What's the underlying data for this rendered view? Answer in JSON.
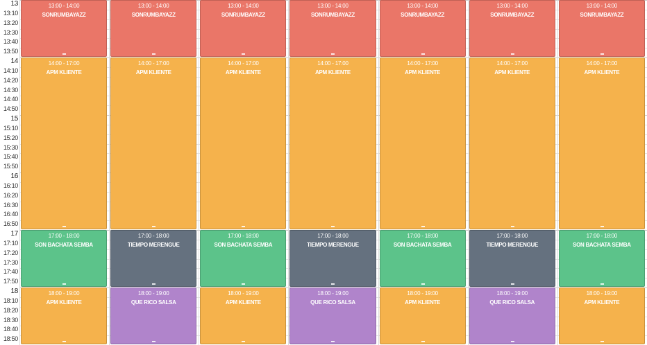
{
  "time_labels": [
    "13",
    "13:10",
    "13:20",
    "13:30",
    "13:40",
    "13:50",
    "14",
    "14:10",
    "14:20",
    "14:30",
    "14:40",
    "14:50",
    "15",
    "15:10",
    "15:20",
    "15:30",
    "15:40",
    "15:50",
    "16",
    "16:10",
    "16:20",
    "16:30",
    "16:40",
    "16:50",
    "17",
    "17:10",
    "17:20",
    "17:30",
    "17:40",
    "17:50",
    "18",
    "18:10",
    "18:20",
    "18:30",
    "18:40",
    "18:50"
  ],
  "colors": {
    "sonrumbayazz": "#ea7668",
    "apm-kliente": "#f5b24c",
    "son-bachata-semba": "#5cc38a",
    "tiempo-merengue": "#65717f",
    "que-rico-salsa": "#b084cb"
  },
  "days": [
    {
      "events": [
        {
          "time": "13:00 - 14:00",
          "title": "SONRUMBAYAZZ",
          "color": "sonrumbayazz",
          "start": 0,
          "end": 6
        },
        {
          "time": "14:00 - 17:00",
          "title": "APM KLIENTE",
          "color": "apm-kliente",
          "start": 6,
          "end": 24
        },
        {
          "time": "17:00 - 18:00",
          "title": "SON BACHATA SEMBA",
          "color": "son-bachata-semba",
          "start": 24,
          "end": 30
        },
        {
          "time": "18:00 - 19:00",
          "title": "APM KLIENTE",
          "color": "apm-kliente",
          "start": 30,
          "end": 36
        }
      ]
    },
    {
      "events": [
        {
          "time": "13:00 - 14:00",
          "title": "SONRUMBAYAZZ",
          "color": "sonrumbayazz",
          "start": 0,
          "end": 6
        },
        {
          "time": "14:00 - 17:00",
          "title": "APM KLIENTE",
          "color": "apm-kliente",
          "start": 6,
          "end": 24
        },
        {
          "time": "17:00 - 18:00",
          "title": "TIEMPO MERENGUE",
          "color": "tiempo-merengue",
          "start": 24,
          "end": 30
        },
        {
          "time": "18:00 - 19:00",
          "title": "QUE RICO SALSA",
          "color": "que-rico-salsa",
          "start": 30,
          "end": 36
        }
      ]
    },
    {
      "events": [
        {
          "time": "13:00 - 14:00",
          "title": "SONRUMBAYAZZ",
          "color": "sonrumbayazz",
          "start": 0,
          "end": 6
        },
        {
          "time": "14:00 - 17:00",
          "title": "APM KLIENTE",
          "color": "apm-kliente",
          "start": 6,
          "end": 24
        },
        {
          "time": "17:00 - 18:00",
          "title": "SON BACHATA SEMBA",
          "color": "son-bachata-semba",
          "start": 24,
          "end": 30
        },
        {
          "time": "18:00 - 19:00",
          "title": "APM KLIENTE",
          "color": "apm-kliente",
          "start": 30,
          "end": 36
        }
      ]
    },
    {
      "events": [
        {
          "time": "13:00 - 14:00",
          "title": "SONRUMBAYAZZ",
          "color": "sonrumbayazz",
          "start": 0,
          "end": 6
        },
        {
          "time": "14:00 - 17:00",
          "title": "APM KLIENTE",
          "color": "apm-kliente",
          "start": 6,
          "end": 24
        },
        {
          "time": "17:00 - 18:00",
          "title": "TIEMPO MERENGUE",
          "color": "tiempo-merengue",
          "start": 24,
          "end": 30
        },
        {
          "time": "18:00 - 19:00",
          "title": "QUE RICO SALSA",
          "color": "que-rico-salsa",
          "start": 30,
          "end": 36
        }
      ]
    },
    {
      "events": [
        {
          "time": "13:00 - 14:00",
          "title": "SONRUMBAYAZZ",
          "color": "sonrumbayazz",
          "start": 0,
          "end": 6
        },
        {
          "time": "14:00 - 17:00",
          "title": "APM KLIENTE",
          "color": "apm-kliente",
          "start": 6,
          "end": 24
        },
        {
          "time": "17:00 - 18:00",
          "title": "SON BACHATA SEMBA",
          "color": "son-bachata-semba",
          "start": 24,
          "end": 30
        },
        {
          "time": "18:00 - 19:00",
          "title": "APM KLIENTE",
          "color": "apm-kliente",
          "start": 30,
          "end": 36
        }
      ]
    },
    {
      "events": [
        {
          "time": "13:00 - 14:00",
          "title": "SONRUMBAYAZZ",
          "color": "sonrumbayazz",
          "start": 0,
          "end": 6
        },
        {
          "time": "14:00 - 17:00",
          "title": "APM KLIENTE",
          "color": "apm-kliente",
          "start": 6,
          "end": 24
        },
        {
          "time": "17:00 - 18:00",
          "title": "TIEMPO MERENGUE",
          "color": "tiempo-merengue",
          "start": 24,
          "end": 30
        },
        {
          "time": "18:00 - 19:00",
          "title": "QUE RICO SALSA",
          "color": "que-rico-salsa",
          "start": 30,
          "end": 36
        }
      ]
    },
    {
      "events": [
        {
          "time": "13:00 - 14:00",
          "title": "SONRUMBAYAZZ",
          "color": "sonrumbayazz",
          "start": 0,
          "end": 6
        },
        {
          "time": "14:00 - 17:00",
          "title": "APM KLIENTE",
          "color": "apm-kliente",
          "start": 6,
          "end": 24
        },
        {
          "time": "17:00 - 18:00",
          "title": "SON BACHATA SEMBA",
          "color": "son-bachata-semba",
          "start": 24,
          "end": 30
        },
        {
          "time": "18:00 - 19:00",
          "title": "APM KLIENTE",
          "color": "apm-kliente",
          "start": 30,
          "end": 36
        }
      ]
    }
  ]
}
